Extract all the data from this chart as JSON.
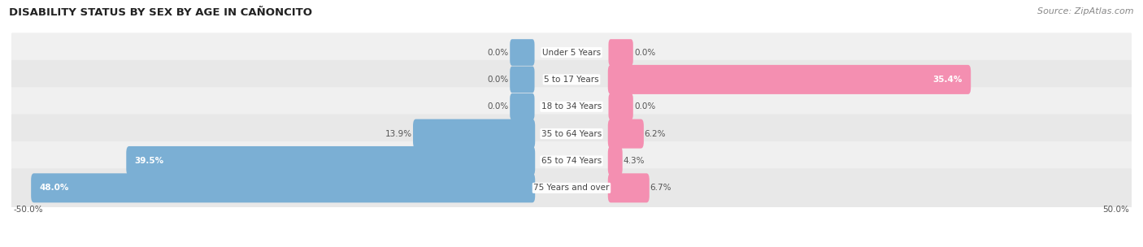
{
  "title": "DISABILITY STATUS BY SEX BY AGE IN CAÑONCITO",
  "source": "Source: ZipAtlas.com",
  "categories": [
    "Under 5 Years",
    "5 to 17 Years",
    "18 to 34 Years",
    "35 to 64 Years",
    "65 to 74 Years",
    "75 Years and over"
  ],
  "male_values": [
    0.0,
    0.0,
    0.0,
    13.9,
    39.5,
    48.0
  ],
  "female_values": [
    0.0,
    35.4,
    0.0,
    6.2,
    4.3,
    6.7
  ],
  "male_color": "#7bafd4",
  "female_color": "#f48fb1",
  "row_colors": [
    "#f0f0f0",
    "#e8e8e8",
    "#f0f0f0",
    "#e8e8e8",
    "#f0f0f0",
    "#e8e8e8"
  ],
  "max_value": 50.0,
  "title_fontsize": 9.5,
  "source_fontsize": 8,
  "label_fontsize": 7.5,
  "category_fontsize": 7.5
}
